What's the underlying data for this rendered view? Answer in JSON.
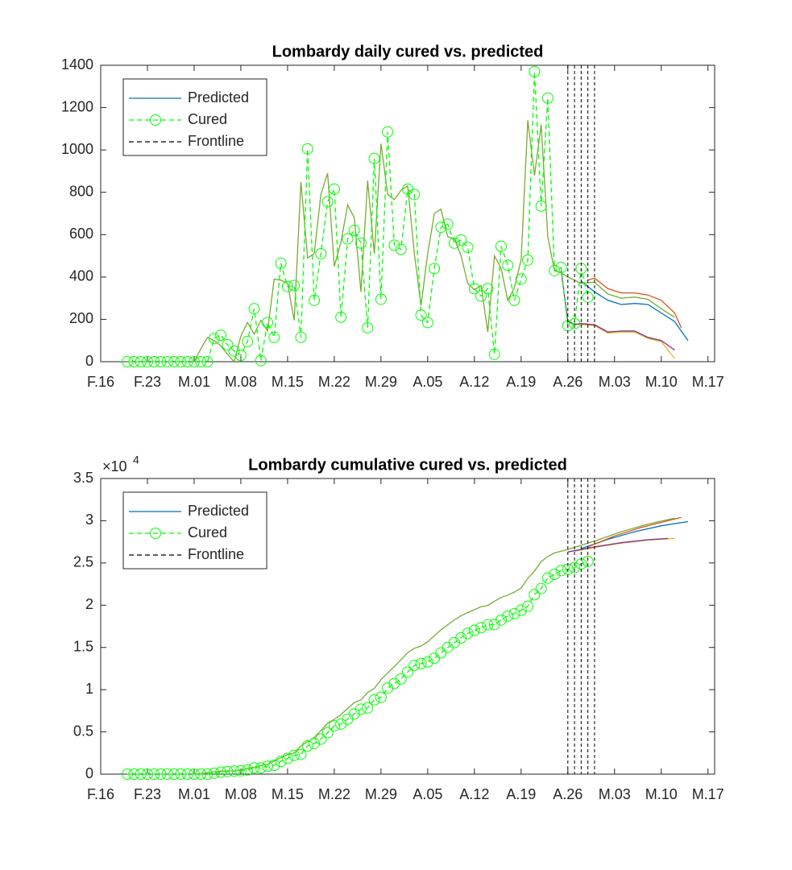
{
  "chart_data": [
    {
      "type": "line",
      "title": "Lombardy daily cured vs. predicted",
      "xlim": [
        0,
        92
      ],
      "xticks": [
        {
          "value": 0,
          "label": "F.16"
        },
        {
          "value": 7,
          "label": "F.23"
        },
        {
          "value": 14,
          "label": "M.01"
        },
        {
          "value": 21,
          "label": "M.08"
        },
        {
          "value": 28,
          "label": "M.15"
        },
        {
          "value": 35,
          "label": "M.22"
        },
        {
          "value": 42,
          "label": "M.29"
        },
        {
          "value": 49,
          "label": "A.05"
        },
        {
          "value": 56,
          "label": "A.12"
        },
        {
          "value": 63,
          "label": "A.19"
        },
        {
          "value": 70,
          "label": "A.26"
        },
        {
          "value": 77,
          "label": "M.03"
        },
        {
          "value": 84,
          "label": "M.10"
        },
        {
          "value": 91,
          "label": "M.17"
        }
      ],
      "ylim": [
        0,
        1400
      ],
      "yticks": [
        0,
        200,
        400,
        600,
        800,
        1000,
        1200,
        1400
      ],
      "legend": "upper left",
      "series": [
        {
          "name": "Predicted",
          "color": "#0072BD",
          "x": [
            72,
            74,
            76,
            78,
            80,
            82,
            84,
            86,
            88
          ],
          "values": [
            380,
            330,
            290,
            270,
            275,
            270,
            230,
            190,
            100
          ]
        },
        {
          "color": "#D95319",
          "x": [
            73,
            74,
            76,
            78,
            80,
            82,
            84,
            86,
            87
          ],
          "values": [
            385,
            395,
            345,
            325,
            325,
            315,
            290,
            230,
            160
          ]
        },
        {
          "color": "#EDB120",
          "x": [
            71,
            72,
            74,
            76,
            78,
            80,
            82,
            84,
            86
          ],
          "values": [
            180,
            175,
            170,
            135,
            140,
            140,
            110,
            95,
            15
          ]
        },
        {
          "color": "#7E2F8E",
          "x": [
            69,
            70,
            71,
            72,
            74,
            76,
            78,
            80,
            82,
            84,
            86
          ],
          "values": [
            430,
            190,
            175,
            180,
            175,
            140,
            145,
            145,
            115,
            100,
            55
          ]
        },
        {
          "color": "#77AC30",
          "x": [
            14,
            15,
            16,
            17,
            18,
            19,
            20,
            21,
            22,
            23,
            24,
            25,
            26,
            27,
            28,
            29,
            30,
            31,
            32,
            33,
            34,
            35,
            36,
            37,
            38,
            39,
            40,
            41,
            42,
            43,
            44,
            45,
            46,
            47,
            48,
            49,
            50,
            51,
            52,
            53,
            54,
            55,
            56,
            57,
            58,
            59,
            60,
            61,
            62,
            63,
            64,
            65,
            66,
            67,
            68,
            69,
            70,
            72,
            74,
            76,
            78,
            80,
            82,
            84,
            86
          ],
          "values": [
            0,
            60,
            115,
            100,
            75,
            35,
            0,
            120,
            185,
            130,
            195,
            145,
            390,
            385,
            370,
            195,
            850,
            490,
            510,
            790,
            890,
            450,
            565,
            740,
            680,
            330,
            855,
            510,
            1030,
            790,
            765,
            810,
            830,
            510,
            265,
            510,
            700,
            720,
            590,
            580,
            500,
            370,
            340,
            360,
            140,
            500,
            440,
            290,
            350,
            480,
            1140,
            880,
            1120,
            590,
            430,
            420,
            400,
            370,
            375,
            320,
            300,
            305,
            295,
            250,
            210
          ]
        },
        {
          "name": "Cured",
          "color": "#00FF00",
          "line_style": "dashed",
          "marker": "circle",
          "x": [
            4,
            5,
            6,
            7,
            8,
            9,
            10,
            11,
            12,
            13,
            14,
            15,
            16,
            17,
            18,
            19,
            20,
            21,
            22,
            23,
            24,
            25,
            26,
            27,
            28,
            29,
            30,
            31,
            32,
            33,
            34,
            35,
            36,
            37,
            38,
            39,
            40,
            41,
            42,
            43,
            44,
            45,
            46,
            47,
            48,
            49,
            50,
            51,
            52,
            53,
            54,
            55,
            56,
            57,
            58,
            59,
            60,
            61,
            62,
            63,
            64,
            65,
            66,
            67,
            68,
            69,
            70,
            71,
            72,
            73
          ],
          "values": [
            0,
            0,
            0,
            0,
            0,
            0,
            0,
            0,
            0,
            0,
            0,
            0,
            0,
            110,
            125,
            80,
            50,
            30,
            95,
            250,
            5,
            185,
            115,
            465,
            355,
            360,
            115,
            1005,
            290,
            510,
            755,
            815,
            210,
            580,
            620,
            560,
            160,
            960,
            295,
            1085,
            550,
            530,
            815,
            790,
            220,
            185,
            440,
            635,
            650,
            560,
            575,
            540,
            345,
            310,
            345,
            35,
            545,
            455,
            290,
            390,
            480,
            1370,
            735,
            1245,
            430,
            445,
            170,
            180,
            440,
            305
          ]
        }
      ],
      "frontline": {
        "name": "Frontline",
        "color": "#000000",
        "x": [
          70,
          71,
          72,
          73,
          74
        ]
      }
    },
    {
      "type": "line",
      "title": "Lombardy cumulative cured vs. predicted",
      "xlim": [
        0,
        92
      ],
      "xticks": [
        {
          "value": 0,
          "label": "F.16"
        },
        {
          "value": 7,
          "label": "F.23"
        },
        {
          "value": 14,
          "label": "M.01"
        },
        {
          "value": 21,
          "label": "M.08"
        },
        {
          "value": 28,
          "label": "M.15"
        },
        {
          "value": 35,
          "label": "M.22"
        },
        {
          "value": 42,
          "label": "M.29"
        },
        {
          "value": 49,
          "label": "A.05"
        },
        {
          "value": 56,
          "label": "A.12"
        },
        {
          "value": 63,
          "label": "A.19"
        },
        {
          "value": 70,
          "label": "A.26"
        },
        {
          "value": 77,
          "label": "M.03"
        },
        {
          "value": 84,
          "label": "M.10"
        },
        {
          "value": 91,
          "label": "M.17"
        }
      ],
      "ylim": [
        0,
        35000
      ],
      "yticks": [
        0,
        {
          "value": 5000,
          "label": "0.5"
        },
        {
          "value": 10000,
          "label": "1"
        },
        {
          "value": 15000,
          "label": "1.5"
        },
        {
          "value": 20000,
          "label": "2"
        },
        {
          "value": 25000,
          "label": "2.5"
        },
        {
          "value": 30000,
          "label": "3"
        },
        {
          "value": 35000,
          "label": "3.5"
        }
      ],
      "y_multiplier": "×10",
      "y_multiplier_exponent": "4",
      "legend": "upper left",
      "series": [
        {
          "name": "Predicted",
          "color": "#0072BD",
          "x": [
            72,
            76,
            80,
            84,
            88
          ],
          "values": [
            26700,
            27800,
            28700,
            29400,
            29900
          ]
        },
        {
          "color": "#D95319",
          "x": [
            73,
            77,
            81,
            85,
            87
          ],
          "values": [
            26900,
            28200,
            29200,
            30000,
            30400
          ]
        },
        {
          "color": "#EDB120",
          "x": [
            71,
            74,
            78,
            82,
            86
          ],
          "values": [
            26400,
            26850,
            27350,
            27700,
            27900
          ]
        },
        {
          "color": "#7E2F8E",
          "x": [
            70,
            74,
            78,
            82,
            85
          ],
          "values": [
            26300,
            26900,
            27400,
            27750,
            27900
          ]
        },
        {
          "color": "#77AC30",
          "x": [
            14,
            15,
            16,
            17,
            18,
            19,
            20,
            21,
            22,
            23,
            24,
            25,
            26,
            27,
            28,
            29,
            30,
            31,
            32,
            33,
            34,
            35,
            36,
            37,
            38,
            39,
            40,
            41,
            42,
            43,
            44,
            45,
            46,
            47,
            48,
            49,
            50,
            51,
            52,
            53,
            54,
            55,
            56,
            57,
            58,
            59,
            60,
            61,
            62,
            63,
            64,
            65,
            66,
            67,
            68,
            70,
            74,
            78,
            82,
            86
          ],
          "values": [
            0,
            60,
            175,
            275,
            350,
            385,
            385,
            505,
            690,
            820,
            1015,
            1160,
            1550,
            1935,
            2305,
            2500,
            3350,
            3840,
            4350,
            5140,
            6030,
            6480,
            7045,
            7785,
            8465,
            8795,
            9650,
            10160,
            11190,
            11980,
            12745,
            13555,
            14385,
            14895,
            15160,
            15670,
            16370,
            17090,
            17680,
            18260,
            18760,
            19130,
            19470,
            19830,
            19970,
            20470,
            20910,
            21200,
            21550,
            22030,
            23170,
            24050,
            25170,
            25760,
            26190,
            26600,
            27600,
            28700,
            29600,
            30300
          ]
        },
        {
          "name": "Cured",
          "color": "#00FF00",
          "line_style": "dashed",
          "marker": "circle",
          "x": [
            4,
            5,
            6,
            7,
            8,
            9,
            10,
            11,
            12,
            13,
            14,
            15,
            16,
            17,
            18,
            19,
            20,
            21,
            22,
            23,
            24,
            25,
            26,
            27,
            28,
            29,
            30,
            31,
            32,
            33,
            34,
            35,
            36,
            37,
            38,
            39,
            40,
            41,
            42,
            43,
            44,
            45,
            46,
            47,
            48,
            49,
            50,
            51,
            52,
            53,
            54,
            55,
            56,
            57,
            58,
            59,
            60,
            61,
            62,
            63,
            64,
            65,
            66,
            67,
            68,
            69,
            70,
            71,
            72,
            73
          ],
          "values": [
            0,
            0,
            0,
            0,
            0,
            0,
            0,
            0,
            0,
            0,
            0,
            0,
            0,
            110,
            235,
            315,
            365,
            395,
            490,
            740,
            745,
            930,
            1045,
            1510,
            1865,
            2225,
            2340,
            3345,
            3635,
            4145,
            4900,
            5715,
            5925,
            6505,
            7125,
            7685,
            7845,
            8805,
            9100,
            10185,
            10735,
            11265,
            12080,
            12870,
            13090,
            13275,
            13715,
            14350,
            15000,
            15560,
            16135,
            16675,
            17020,
            17330,
            17675,
            17710,
            18255,
            18710,
            19000,
            19390,
            19870,
            21240,
            21975,
            23220,
            23650,
            24095,
            24265,
            24445,
            24885,
            25190
          ]
        }
      ],
      "frontline": {
        "name": "Frontline",
        "color": "#000000",
        "x": [
          70,
          71,
          72,
          73,
          74
        ]
      }
    }
  ]
}
